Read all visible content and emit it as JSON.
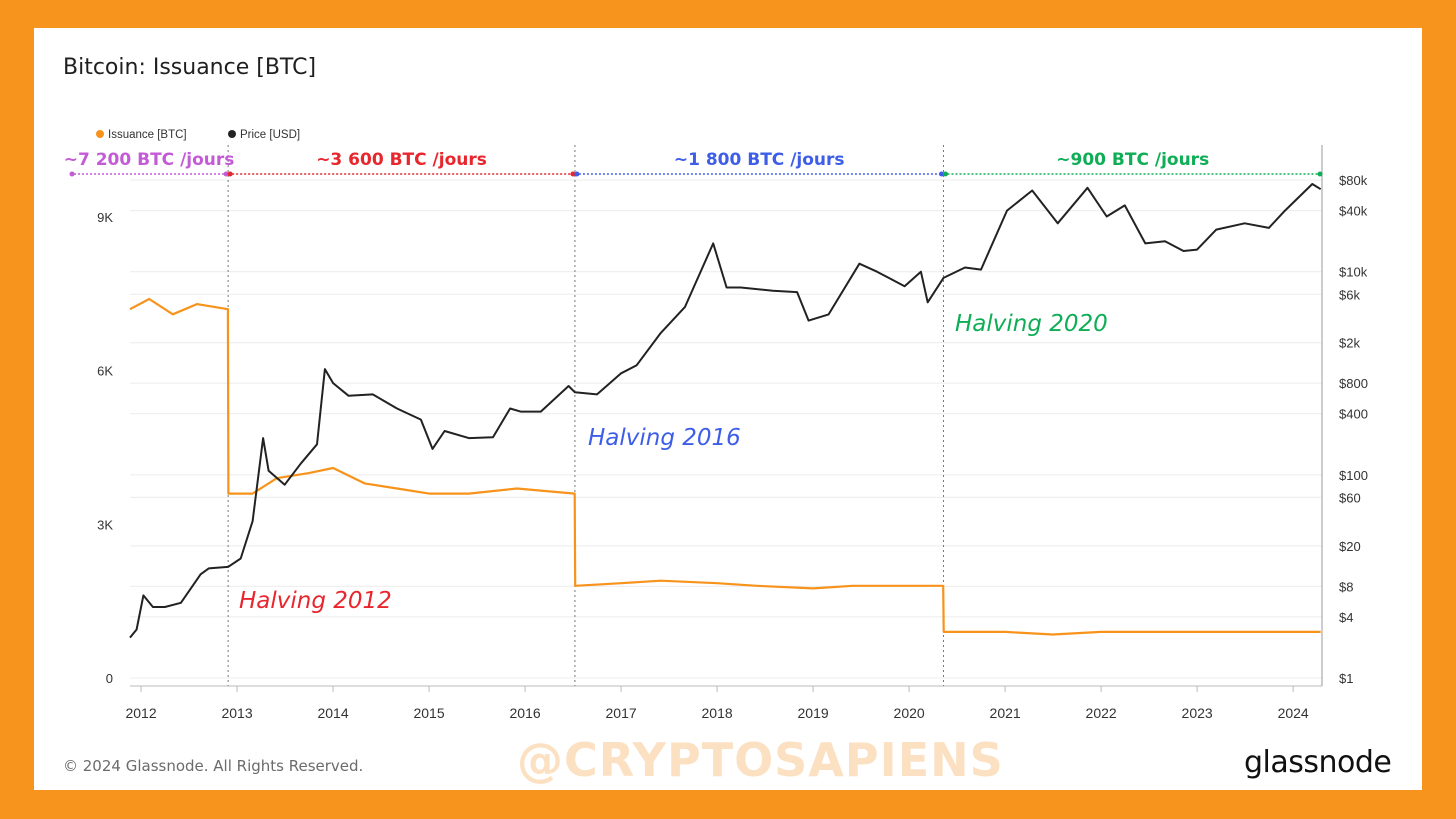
{
  "page": {
    "title": "Bitcoin: Issuance [BTC]",
    "copyright": "© 2024 Glassnode. All Rights Reserved.",
    "watermark": "@CRYPTOSAPIENS",
    "brand": "glassnode"
  },
  "colors": {
    "background": "#f7941d",
    "issuance": "#f7931a",
    "price": "#222222",
    "era1": "#c45bd6",
    "era2": "#e8262d",
    "era3": "#3e5ee8",
    "era4": "#0fae56"
  },
  "chart_data": {
    "type": "line",
    "title": "Bitcoin: Issuance [BTC]",
    "legend": {
      "position": "top-left",
      "items": [
        "Issuance [BTC]",
        "Price [USD]"
      ]
    },
    "grid": true,
    "x_ticks": [
      "2012",
      "2013",
      "2014",
      "2015",
      "2016",
      "2017",
      "2018",
      "2019",
      "2020",
      "2021",
      "2022",
      "2023",
      "2024"
    ],
    "xlim": [
      "2011-11-20",
      "2024-04-20"
    ],
    "y_left": {
      "label": "",
      "ticks": [
        "0",
        "3K",
        "6K",
        "9K"
      ],
      "tick_values": [
        0,
        3000,
        6000,
        9000
      ],
      "ylim": [
        0,
        9000
      ]
    },
    "y_right": {
      "label": "",
      "scale": "log",
      "ticks": [
        "$80k",
        "$40k",
        "$10k",
        "$6k",
        "$2k",
        "$800",
        "$400",
        "$100",
        "$60",
        "$20",
        "$8",
        "$4",
        "$1"
      ],
      "tick_values": [
        80000,
        40000,
        10000,
        6000,
        2000,
        800,
        400,
        100,
        60,
        20,
        8,
        4,
        1
      ]
    },
    "series": [
      {
        "name": "Issuance [BTC]",
        "axis": "left",
        "points": [
          [
            "2011-11-20",
            7200
          ],
          [
            "2012-02-01",
            7400
          ],
          [
            "2012-05-01",
            7100
          ],
          [
            "2012-08-01",
            7300
          ],
          [
            "2012-11-27",
            7200
          ],
          [
            "2012-11-29",
            3600
          ],
          [
            "2013-03-01",
            3600
          ],
          [
            "2013-06-01",
            3900
          ],
          [
            "2013-10-01",
            4000
          ],
          [
            "2014-01-01",
            4100
          ],
          [
            "2014-05-01",
            3800
          ],
          [
            "2014-09-01",
            3700
          ],
          [
            "2015-01-01",
            3600
          ],
          [
            "2015-06-01",
            3600
          ],
          [
            "2015-12-01",
            3700
          ],
          [
            "2016-07-08",
            3600
          ],
          [
            "2016-07-10",
            1800
          ],
          [
            "2017-01-01",
            1850
          ],
          [
            "2017-06-01",
            1900
          ],
          [
            "2018-01-01",
            1850
          ],
          [
            "2018-06-01",
            1800
          ],
          [
            "2019-01-01",
            1750
          ],
          [
            "2019-06-01",
            1800
          ],
          [
            "2020-01-01",
            1800
          ],
          [
            "2020-05-10",
            1800
          ],
          [
            "2020-05-12",
            900
          ],
          [
            "2021-01-01",
            900
          ],
          [
            "2021-07-01",
            850
          ],
          [
            "2022-01-01",
            900
          ],
          [
            "2022-07-01",
            900
          ],
          [
            "2023-01-01",
            900
          ],
          [
            "2023-07-01",
            900
          ],
          [
            "2024-04-15",
            900
          ]
        ]
      },
      {
        "name": "Price [USD]",
        "axis": "right",
        "points": [
          [
            "2011-11-20",
            2.5
          ],
          [
            "2011-12-15",
            3
          ],
          [
            "2012-01-10",
            6.5
          ],
          [
            "2012-02-15",
            5
          ],
          [
            "2012-04-01",
            5
          ],
          [
            "2012-06-01",
            5.5
          ],
          [
            "2012-08-15",
            10.5
          ],
          [
            "2012-09-15",
            12
          ],
          [
            "2012-11-28",
            12.4
          ],
          [
            "2013-01-15",
            15
          ],
          [
            "2013-03-01",
            35
          ],
          [
            "2013-04-10",
            230
          ],
          [
            "2013-05-01",
            110
          ],
          [
            "2013-07-01",
            80
          ],
          [
            "2013-09-01",
            130
          ],
          [
            "2013-11-01",
            200
          ],
          [
            "2013-12-01",
            1100
          ],
          [
            "2014-01-01",
            800
          ],
          [
            "2014-03-01",
            600
          ],
          [
            "2014-06-01",
            620
          ],
          [
            "2014-09-01",
            450
          ],
          [
            "2014-12-01",
            350
          ],
          [
            "2015-01-14",
            180
          ],
          [
            "2015-03-01",
            270
          ],
          [
            "2015-06-01",
            230
          ],
          [
            "2015-09-01",
            235
          ],
          [
            "2015-11-05",
            450
          ],
          [
            "2015-12-15",
            420
          ],
          [
            "2016-03-01",
            420
          ],
          [
            "2016-06-15",
            750
          ],
          [
            "2016-07-09",
            650
          ],
          [
            "2016-10-01",
            620
          ],
          [
            "2017-01-01",
            1000
          ],
          [
            "2017-03-01",
            1200
          ],
          [
            "2017-06-01",
            2500
          ],
          [
            "2017-09-01",
            4500
          ],
          [
            "2017-12-17",
            19000
          ],
          [
            "2018-02-06",
            7000
          ],
          [
            "2018-04-01",
            7000
          ],
          [
            "2018-08-01",
            6500
          ],
          [
            "2018-11-01",
            6300
          ],
          [
            "2018-12-15",
            3300
          ],
          [
            "2019-03-01",
            3800
          ],
          [
            "2019-06-26",
            12000
          ],
          [
            "2019-09-01",
            10000
          ],
          [
            "2019-12-15",
            7200
          ],
          [
            "2020-02-15",
            10000
          ],
          [
            "2020-03-12",
            5000
          ],
          [
            "2020-05-11",
            8700
          ],
          [
            "2020-08-01",
            11000
          ],
          [
            "2020-10-01",
            10500
          ],
          [
            "2021-01-08",
            40000
          ],
          [
            "2021-04-14",
            63000
          ],
          [
            "2021-07-20",
            30000
          ],
          [
            "2021-11-10",
            67000
          ],
          [
            "2022-01-22",
            35000
          ],
          [
            "2022-04-01",
            45000
          ],
          [
            "2022-06-18",
            19000
          ],
          [
            "2022-09-01",
            20000
          ],
          [
            "2022-11-10",
            16000
          ],
          [
            "2023-01-01",
            16500
          ],
          [
            "2023-03-15",
            26000
          ],
          [
            "2023-07-01",
            30000
          ],
          [
            "2023-10-01",
            27000
          ],
          [
            "2023-12-01",
            40000
          ],
          [
            "2024-03-14",
            73000
          ],
          [
            "2024-04-15",
            65000
          ]
        ]
      }
    ],
    "halvings": [
      {
        "date": "2012-11-28",
        "label": "Halving 2012"
      },
      {
        "date": "2016-07-09",
        "label": "Halving 2016"
      },
      {
        "date": "2020-05-11",
        "label": "Halving 2020"
      }
    ],
    "era_annotations": [
      {
        "label": "~7 200 BTC /jours",
        "from": "2011-11-20",
        "to": "2012-11-28"
      },
      {
        "label": "~3 600 BTC /jours",
        "from": "2012-11-28",
        "to": "2016-07-09"
      },
      {
        "label": "~1 800 BTC /jours",
        "from": "2016-07-09",
        "to": "2020-05-11"
      },
      {
        "label": "~900 BTC /jours",
        "from": "2020-05-11",
        "to": "2024-04-20"
      }
    ]
  }
}
